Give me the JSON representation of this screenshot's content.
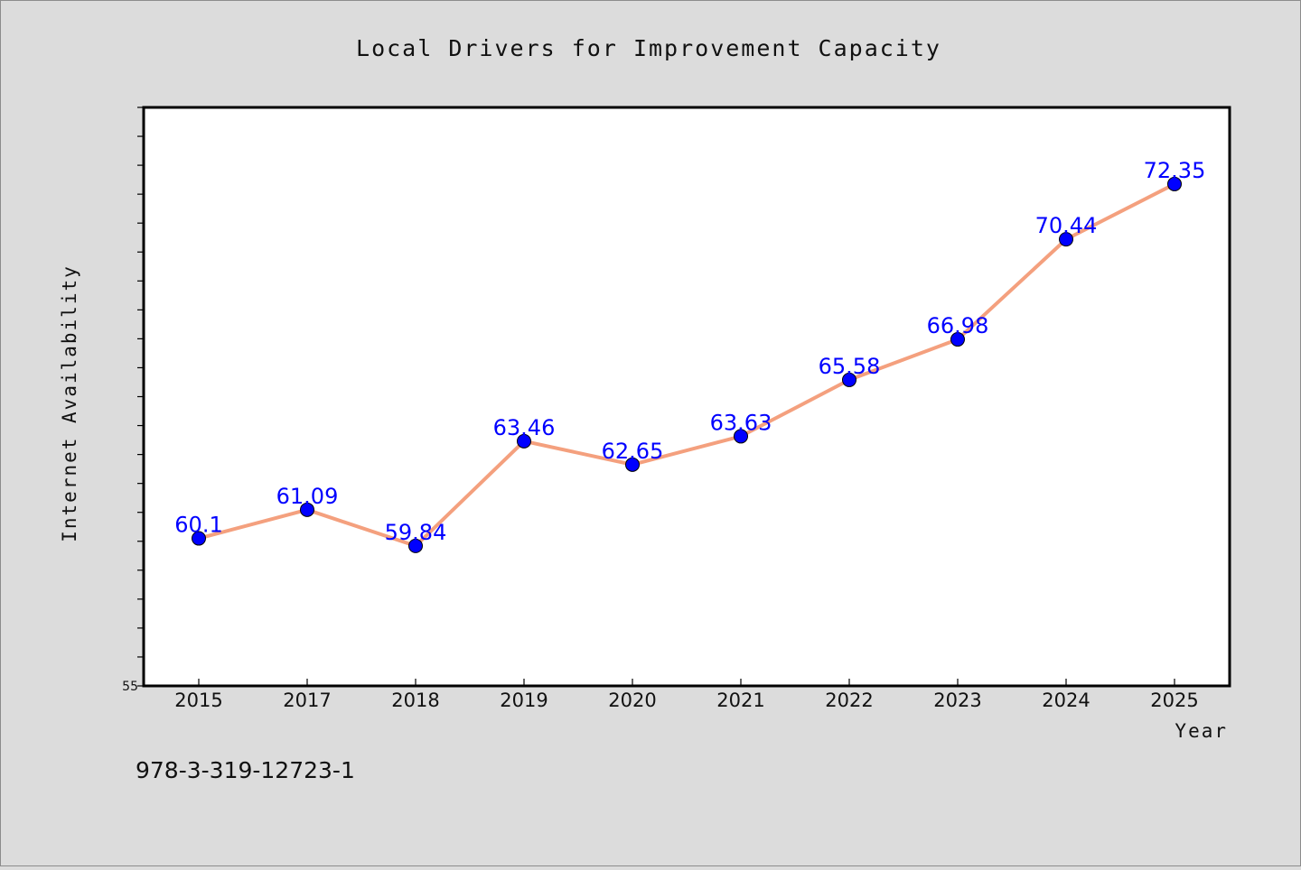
{
  "chart_data": {
    "type": "line",
    "title": "Local Drivers for Improvement Capacity",
    "xlabel": "Year",
    "ylabel": "Internet Availability",
    "categories": [
      "2015",
      "2017",
      "2018",
      "2019",
      "2020",
      "2021",
      "2022",
      "2023",
      "2024",
      "2025"
    ],
    "series": [
      {
        "values": [
          60.1,
          61.09,
          59.84,
          63.46,
          62.65,
          63.63,
          65.58,
          66.98,
          70.44,
          72.35
        ],
        "data_labels": [
          "60.1",
          "61.09",
          "59.84",
          "63.46",
          "62.65",
          "63.63",
          "65.58",
          "66.98",
          "70.44",
          "72.35"
        ]
      }
    ],
    "ylim": [
      55,
      75
    ],
    "ytick_labels": [
      "55"
    ],
    "grid": false,
    "legend": "none",
    "colors": {
      "line": "#f4a07e",
      "marker": "#0000ff",
      "data_label": "#0000ff",
      "plot_background": "#ffffff",
      "figure_background": "#dcdcdc"
    }
  },
  "footer_code": "978-3-319-12723-1"
}
